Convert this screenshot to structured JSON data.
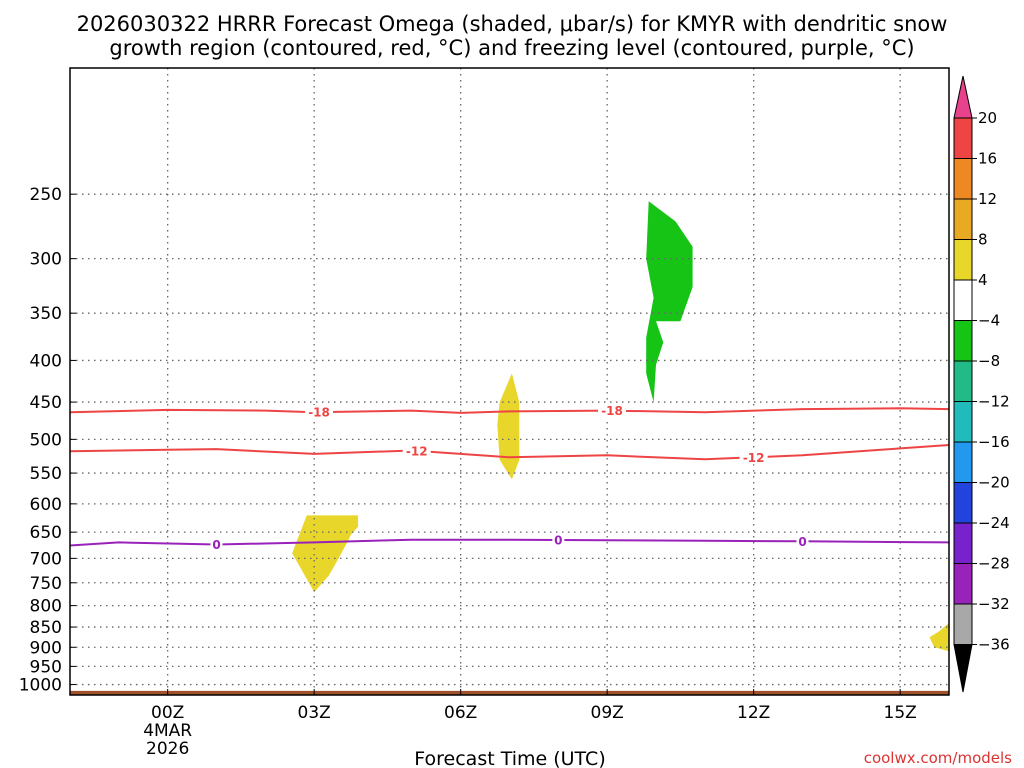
{
  "chart_data": {
    "type": "contour",
    "title_line1": "2026030322 HRRR Forecast Omega (shaded, μbar/s) for KMYR with dendritic snow",
    "title_line2": "growth region (contoured, red, °C) and freezing level (contoured, purple, °C)",
    "xlabel": "Forecast Time (UTC)",
    "ylabel": "",
    "x_ticks": [
      {
        "hour": 0,
        "label": "00Z",
        "sub1": "4MAR",
        "sub2": "2026"
      },
      {
        "hour": 3,
        "label": "03Z"
      },
      {
        "hour": 6,
        "label": "06Z"
      },
      {
        "hour": 9,
        "label": "09Z"
      },
      {
        "hour": 12,
        "label": "12Z"
      },
      {
        "hour": 15,
        "label": "15Z"
      }
    ],
    "xlim": [
      -2,
      16
    ],
    "y_ticks": [
      250,
      300,
      350,
      400,
      450,
      500,
      550,
      600,
      650,
      700,
      750,
      800,
      850,
      900,
      950,
      1000
    ],
    "ylim": [
      1030,
      175
    ],
    "y_scale": "log-pressure (hPa)",
    "grid": true,
    "colorbar": {
      "levels": [
        "20",
        "16",
        "12",
        "8",
        "4",
        "−4",
        "−8",
        "−12",
        "−16",
        "−20",
        "−24",
        "−28",
        "−32",
        "−36"
      ],
      "colors": [
        "#e8428c",
        "#ee4444",
        "#ee8822",
        "#e8aa22",
        "#e8d62a",
        "#ffffff",
        "#16c416",
        "#22bb88",
        "#22bbbb",
        "#2299ee",
        "#2244dd",
        "#7722cc",
        "#9922bb",
        "#a8a8a8",
        "#000000"
      ]
    },
    "shaded_regions": [
      {
        "name": "omega-negative",
        "color": "#16c416",
        "points": [
          [
            9.85,
            255
          ],
          [
            10.4,
            270
          ],
          [
            10.75,
            290
          ],
          [
            10.75,
            325
          ],
          [
            10.5,
            358
          ],
          [
            10.0,
            358
          ],
          [
            10.15,
            380
          ],
          [
            10.0,
            405
          ],
          [
            9.95,
            450
          ],
          [
            9.8,
            415
          ],
          [
            9.8,
            375
          ],
          [
            9.95,
            335
          ],
          [
            9.8,
            300
          ]
        ]
      },
      {
        "name": "omega-positive-a",
        "color": "#e8d62a",
        "points": [
          [
            7.05,
            415
          ],
          [
            7.2,
            450
          ],
          [
            7.2,
            530
          ],
          [
            7.05,
            560
          ],
          [
            6.8,
            530
          ],
          [
            6.75,
            480
          ],
          [
            6.8,
            450
          ]
        ]
      },
      {
        "name": "omega-positive-b",
        "color": "#e8d62a",
        "points": [
          [
            2.85,
            620
          ],
          [
            3.4,
            620
          ],
          [
            3.9,
            620
          ],
          [
            3.9,
            640
          ],
          [
            3.75,
            655
          ],
          [
            3.7,
            665
          ],
          [
            3.5,
            700
          ],
          [
            3.3,
            735
          ],
          [
            3.0,
            770
          ],
          [
            2.55,
            690
          ],
          [
            2.65,
            665
          ]
        ]
      },
      {
        "name": "omega-positive-c",
        "color": "#e8d62a",
        "points": [
          [
            16.0,
            840
          ],
          [
            15.8,
            860
          ],
          [
            15.6,
            875
          ],
          [
            15.7,
            900
          ],
          [
            16.0,
            910
          ]
        ]
      }
    ],
    "contours": [
      {
        "name": "-18",
        "color": "#ee4444",
        "label": "-18",
        "label_x": [
          3.1,
          9.1
        ],
        "points": [
          [
            -2,
            463
          ],
          [
            0,
            460
          ],
          [
            2,
            461
          ],
          [
            3,
            463
          ],
          [
            5,
            461
          ],
          [
            6,
            464
          ],
          [
            7,
            462
          ],
          [
            9,
            461
          ],
          [
            11,
            463
          ],
          [
            13,
            459
          ],
          [
            15,
            458
          ],
          [
            16,
            459
          ]
        ]
      },
      {
        "name": "-12",
        "color": "#ee4444",
        "label": "-12",
        "label_x": [
          5.1,
          12.0
        ],
        "points": [
          [
            -2,
            517
          ],
          [
            0,
            515
          ],
          [
            1,
            514
          ],
          [
            3,
            521
          ],
          [
            5,
            516
          ],
          [
            7,
            526
          ],
          [
            9,
            523
          ],
          [
            11,
            529
          ],
          [
            13,
            523
          ],
          [
            15,
            513
          ],
          [
            16,
            508
          ]
        ]
      },
      {
        "name": "0",
        "color": "#9922bb",
        "label": "0",
        "label_x": [
          1.0,
          8.0,
          13.0
        ],
        "points": [
          [
            -2,
            675
          ],
          [
            -1,
            669
          ],
          [
            1,
            673
          ],
          [
            3,
            669
          ],
          [
            5,
            664
          ],
          [
            7,
            664
          ],
          [
            9,
            665
          ],
          [
            11,
            666
          ],
          [
            13,
            667
          ],
          [
            16,
            669
          ]
        ]
      }
    ],
    "ground": {
      "color": "#a0522d",
      "pressure_top": 1018
    }
  },
  "credit": "coolwx.com/models"
}
